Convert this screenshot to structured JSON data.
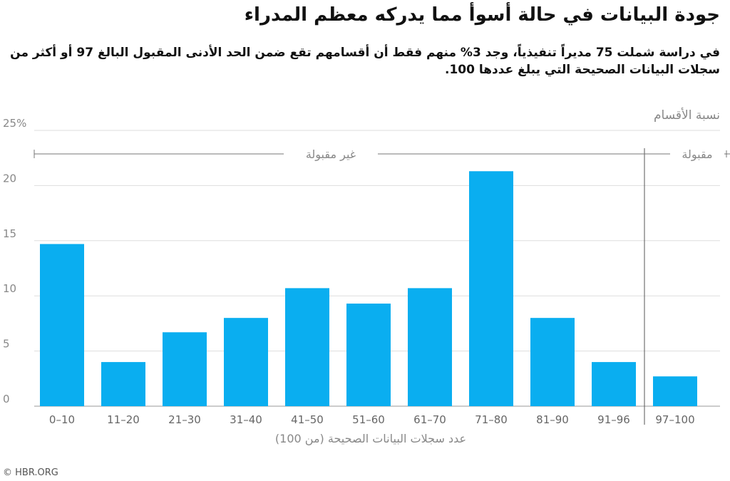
{
  "header": {
    "title": "جودة البيانات في حالة أسوأ مما يدركه معظم المدراء",
    "subtitle": "في دراسة شملت 75 مديراً تنفيذياً، وجد 3% منهم فقط أن أقسامهم تقع ضمن الحد الأدنى المقبول البالغ 97 أو أكثر من سجلات البيانات الصحيحة التي يبلغ عددها 100."
  },
  "footer": {
    "source": "© HBR.ORG"
  },
  "chart_data": {
    "type": "bar",
    "title": "جودة البيانات في حالة أسوأ مما يدركه معظم المدراء",
    "ylabel": "نسبة الأقسام",
    "xlabel": "عدد سجلات البيانات الصحيحة (من 100)",
    "categories": [
      "0–10",
      "11–20",
      "21–30",
      "31–40",
      "41–50",
      "51–60",
      "61–70",
      "71–80",
      "81–90",
      "91–96",
      "97–100"
    ],
    "values": [
      14.7,
      4.0,
      6.7,
      8.0,
      10.7,
      9.3,
      10.7,
      21.3,
      8.0,
      4.0,
      2.7
    ],
    "ylim": [
      0,
      25
    ],
    "yticks": [
      {
        "value": 0,
        "label": "0"
      },
      {
        "value": 5,
        "label": "5"
      },
      {
        "value": 10,
        "label": "10"
      },
      {
        "value": 15,
        "label": "15"
      },
      {
        "value": 20,
        "label": "20"
      },
      {
        "value": 25,
        "label": "25%"
      }
    ],
    "grid": true,
    "bar_color": "#0aaef0",
    "groups": [
      {
        "label": "غير مقبولة",
        "categories": [
          "0–10",
          "11–20",
          "21–30",
          "31–40",
          "41–50",
          "51–60",
          "61–70",
          "71–80",
          "81–90",
          "91–96"
        ]
      },
      {
        "label": "مقبولة",
        "categories": [
          "97–100"
        ]
      }
    ]
  }
}
